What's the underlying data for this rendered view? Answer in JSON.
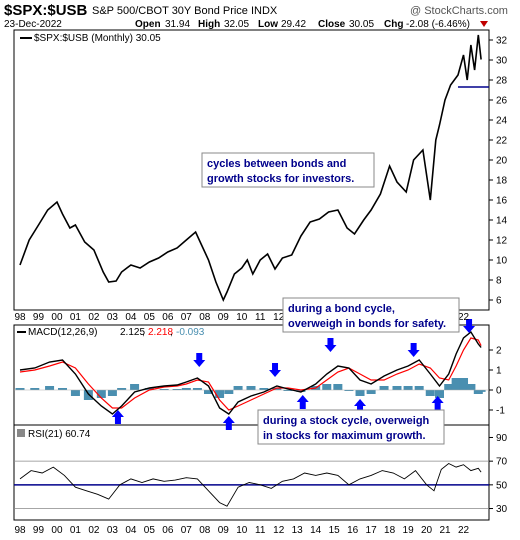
{
  "header": {
    "symbol": "$SPX:$USB",
    "name": "S&P 500/CBOT 30Y Bond Price INDX",
    "watermark": "@ StockCharts.com",
    "date": "23-Dec-2022",
    "open_label": "Open",
    "open": "31.94",
    "high_label": "High",
    "high": "32.05",
    "low_label": "Low",
    "low": "29.42",
    "close_label": "Close",
    "close": "30.05",
    "chg_label": "Chg",
    "chg": "-2.08 (-6.46%)"
  },
  "panels": {
    "price_legend": "$SPX:$USB (Monthly) 30.05",
    "macd_legend_prefix": "MACD(12,26,9)",
    "macd_value": "2.125",
    "macd_signal": "2.218",
    "macd_hist": "-0.093",
    "rsi_legend": "RSI(21) 60.74"
  },
  "annotations": {
    "cycles_1": "cycles between bonds and",
    "cycles_2": "growth stocks for investors.",
    "bond_1": "during a bond cycle,",
    "bond_2": "overweigh in bonds for safety.",
    "stock_1": "during a stock cycle, overweigh",
    "stock_2": "in stocks for maximum growth."
  },
  "colors": {
    "price": "#000000",
    "macd": "#000000",
    "signal": "#ff0000",
    "histogram": "#4a8fb0",
    "arrow": "#0000ff",
    "annotation_text": "#00008b",
    "rsi_line": "#000000",
    "rsi_band": "#00008b"
  },
  "chart_data": [
    {
      "type": "line",
      "title": "$SPX:$USB (Monthly) 30.05",
      "x_ticks": [
        "98",
        "99",
        "00",
        "01",
        "02",
        "03",
        "04",
        "05",
        "06",
        "07",
        "08",
        "09",
        "10",
        "11",
        "12",
        "13",
        "14",
        "15",
        "16",
        "17",
        "18",
        "19",
        "20",
        "21",
        "22"
      ],
      "y_ticks": [
        6,
        8,
        10,
        12,
        14,
        16,
        18,
        20,
        22,
        24,
        26,
        28,
        30,
        32
      ],
      "ylim": [
        5,
        33
      ],
      "x": [
        1998.0,
        1998.5,
        1999.0,
        1999.5,
        2000.0,
        2000.3,
        2000.7,
        2001.0,
        2001.5,
        2002.0,
        2002.5,
        2002.8,
        2003.2,
        2003.5,
        2004.0,
        2004.5,
        2005.0,
        2005.5,
        2006.0,
        2006.5,
        2007.0,
        2007.5,
        2007.8,
        2008.2,
        2008.6,
        2009.0,
        2009.2,
        2009.6,
        2010.0,
        2010.3,
        2010.6,
        2011.0,
        2011.4,
        2011.8,
        2012.2,
        2012.7,
        2013.2,
        2013.7,
        2014.2,
        2014.7,
        2015.2,
        2015.7,
        2016.1,
        2016.6,
        2017.0,
        2017.5,
        2018.0,
        2018.4,
        2018.9,
        2019.3,
        2019.8,
        2020.2,
        2020.5,
        2020.7,
        2021.0,
        2021.3,
        2021.7,
        2022.0,
        2022.2,
        2022.4,
        2022.6,
        2022.8,
        2022.95
      ],
      "values": [
        9.5,
        12.0,
        13.5,
        15.0,
        15.8,
        14.6,
        13.2,
        13.5,
        11.8,
        11.0,
        8.8,
        7.8,
        7.9,
        8.8,
        9.5,
        9.2,
        9.8,
        10.2,
        10.8,
        11.2,
        12.0,
        12.8,
        11.6,
        10.0,
        7.8,
        6.0,
        6.8,
        8.6,
        9.2,
        10.0,
        8.6,
        10.0,
        10.6,
        9.1,
        10.2,
        10.5,
        12.4,
        13.8,
        14.1,
        14.8,
        15.0,
        13.2,
        12.6,
        14.0,
        15.0,
        16.6,
        19.4,
        17.8,
        16.8,
        20.0,
        21.0,
        16.0,
        22.0,
        23.5,
        26.0,
        27.5,
        28.5,
        30.5,
        28.0,
        31.5,
        29.0,
        32.5,
        30.05
      ]
    },
    {
      "type": "line",
      "title": "MACD(12,26,9)",
      "y_ticks": [
        -1,
        0,
        1,
        2
      ],
      "ylim": [
        -1.6,
        3.0
      ],
      "series": [
        {
          "name": "MACD(12,26,9)",
          "x": [
            1998.0,
            1998.8,
            1999.6,
            2000.3,
            2001.0,
            2001.7,
            2002.4,
            2003.0,
            2003.5,
            2004.2,
            2005.0,
            2005.8,
            2006.5,
            2007.0,
            2007.6,
            2008.2,
            2008.8,
            2009.3,
            2009.8,
            2010.5,
            2011.2,
            2011.9,
            2012.5,
            2013.2,
            2014.0,
            2014.6,
            2015.2,
            2015.8,
            2016.4,
            2017.0,
            2017.7,
            2018.4,
            2019.0,
            2019.6,
            2020.2,
            2020.7,
            2021.2,
            2021.6,
            2022.0,
            2022.4,
            2022.8,
            2022.95
          ],
          "values": [
            1.0,
            1.1,
            1.4,
            1.5,
            0.8,
            -0.2,
            -0.8,
            -1.2,
            -0.8,
            -0.1,
            0.1,
            0.2,
            0.25,
            0.4,
            0.6,
            0.2,
            -0.9,
            -1.2,
            -0.6,
            -0.3,
            -0.1,
            0.2,
            0.05,
            -0.1,
            0.3,
            0.8,
            1.2,
            1.1,
            0.5,
            0.3,
            0.7,
            1.0,
            1.2,
            1.5,
            0.8,
            0.2,
            0.8,
            1.8,
            2.6,
            2.9,
            2.3,
            2.125
          ]
        },
        {
          "name": "signal",
          "x": [
            1998.0,
            1998.8,
            1999.6,
            2000.3,
            2001.0,
            2001.7,
            2002.4,
            2003.0,
            2003.5,
            2004.2,
            2005.0,
            2005.8,
            2006.5,
            2007.0,
            2007.6,
            2008.2,
            2008.8,
            2009.3,
            2009.8,
            2010.5,
            2011.2,
            2011.9,
            2012.5,
            2013.2,
            2014.0,
            2014.6,
            2015.2,
            2015.8,
            2016.4,
            2017.0,
            2017.7,
            2018.4,
            2019.0,
            2019.6,
            2020.2,
            2020.7,
            2021.2,
            2021.6,
            2022.0,
            2022.4,
            2022.8,
            2022.95
          ],
          "values": [
            0.9,
            1.0,
            1.2,
            1.4,
            1.1,
            0.3,
            -0.4,
            -0.9,
            -0.9,
            -0.4,
            0.0,
            0.15,
            0.2,
            0.3,
            0.5,
            0.4,
            -0.5,
            -1.0,
            -0.8,
            -0.5,
            -0.2,
            0.1,
            0.1,
            0.0,
            0.1,
            0.5,
            0.9,
            1.1,
            0.8,
            0.5,
            0.5,
            0.8,
            1.0,
            1.3,
            1.1,
            0.6,
            0.5,
            1.2,
            2.0,
            2.6,
            2.5,
            2.218
          ]
        }
      ],
      "histogram": {
        "x": [
          1998.0,
          1998.8,
          1999.6,
          2000.3,
          2001.0,
          2001.7,
          2002.4,
          2003.0,
          2003.5,
          2004.2,
          2005.0,
          2005.8,
          2006.5,
          2007.0,
          2007.6,
          2008.2,
          2008.8,
          2009.3,
          2009.8,
          2010.5,
          2011.2,
          2011.9,
          2012.5,
          2013.2,
          2014.0,
          2014.6,
          2015.2,
          2015.8,
          2016.4,
          2017.0,
          2017.7,
          2018.4,
          2019.0,
          2019.6,
          2020.2,
          2020.7,
          2021.2,
          2021.6,
          2022.0,
          2022.4,
          2022.8,
          2022.95
        ],
        "values": [
          0.1,
          0.1,
          0.2,
          0.1,
          -0.3,
          -0.5,
          -0.4,
          -0.3,
          0.1,
          0.3,
          0.1,
          0.05,
          0.05,
          0.1,
          0.1,
          -0.2,
          -0.4,
          -0.2,
          0.2,
          0.2,
          0.1,
          0.1,
          -0.05,
          -0.1,
          0.2,
          0.3,
          0.3,
          0.0,
          -0.3,
          -0.2,
          0.2,
          0.2,
          0.2,
          0.2,
          -0.3,
          -0.4,
          0.3,
          0.6,
          0.6,
          0.3,
          -0.2,
          -0.093
        ]
      }
    },
    {
      "type": "line",
      "title": "RSI(21) 60.74",
      "y_ticks": [
        30,
        50,
        70,
        90
      ],
      "ylim": [
        22,
        98
      ],
      "bands": [
        70,
        50,
        30
      ],
      "x": [
        1998.0,
        1998.6,
        1999.2,
        1999.8,
        2000.4,
        2001.0,
        2001.6,
        2002.2,
        2002.8,
        2003.4,
        2004.0,
        2004.6,
        2005.2,
        2005.8,
        2006.4,
        2007.0,
        2007.6,
        2008.2,
        2008.8,
        2009.2,
        2009.8,
        2010.4,
        2011.0,
        2011.6,
        2012.2,
        2012.8,
        2013.4,
        2014.0,
        2014.6,
        2015.2,
        2015.8,
        2016.4,
        2017.0,
        2017.6,
        2018.2,
        2018.8,
        2019.4,
        2020.0,
        2020.4,
        2020.8,
        2021.2,
        2021.6,
        2022.0,
        2022.4,
        2022.8,
        2022.95
      ],
      "values": [
        55,
        62,
        60,
        65,
        58,
        48,
        45,
        42,
        38,
        50,
        55,
        52,
        55,
        53,
        54,
        56,
        55,
        45,
        35,
        32,
        48,
        52,
        50,
        47,
        53,
        55,
        60,
        58,
        60,
        58,
        50,
        55,
        58,
        62,
        60,
        55,
        62,
        50,
        45,
        63,
        68,
        65,
        67,
        62,
        64,
        60.74
      ]
    }
  ]
}
